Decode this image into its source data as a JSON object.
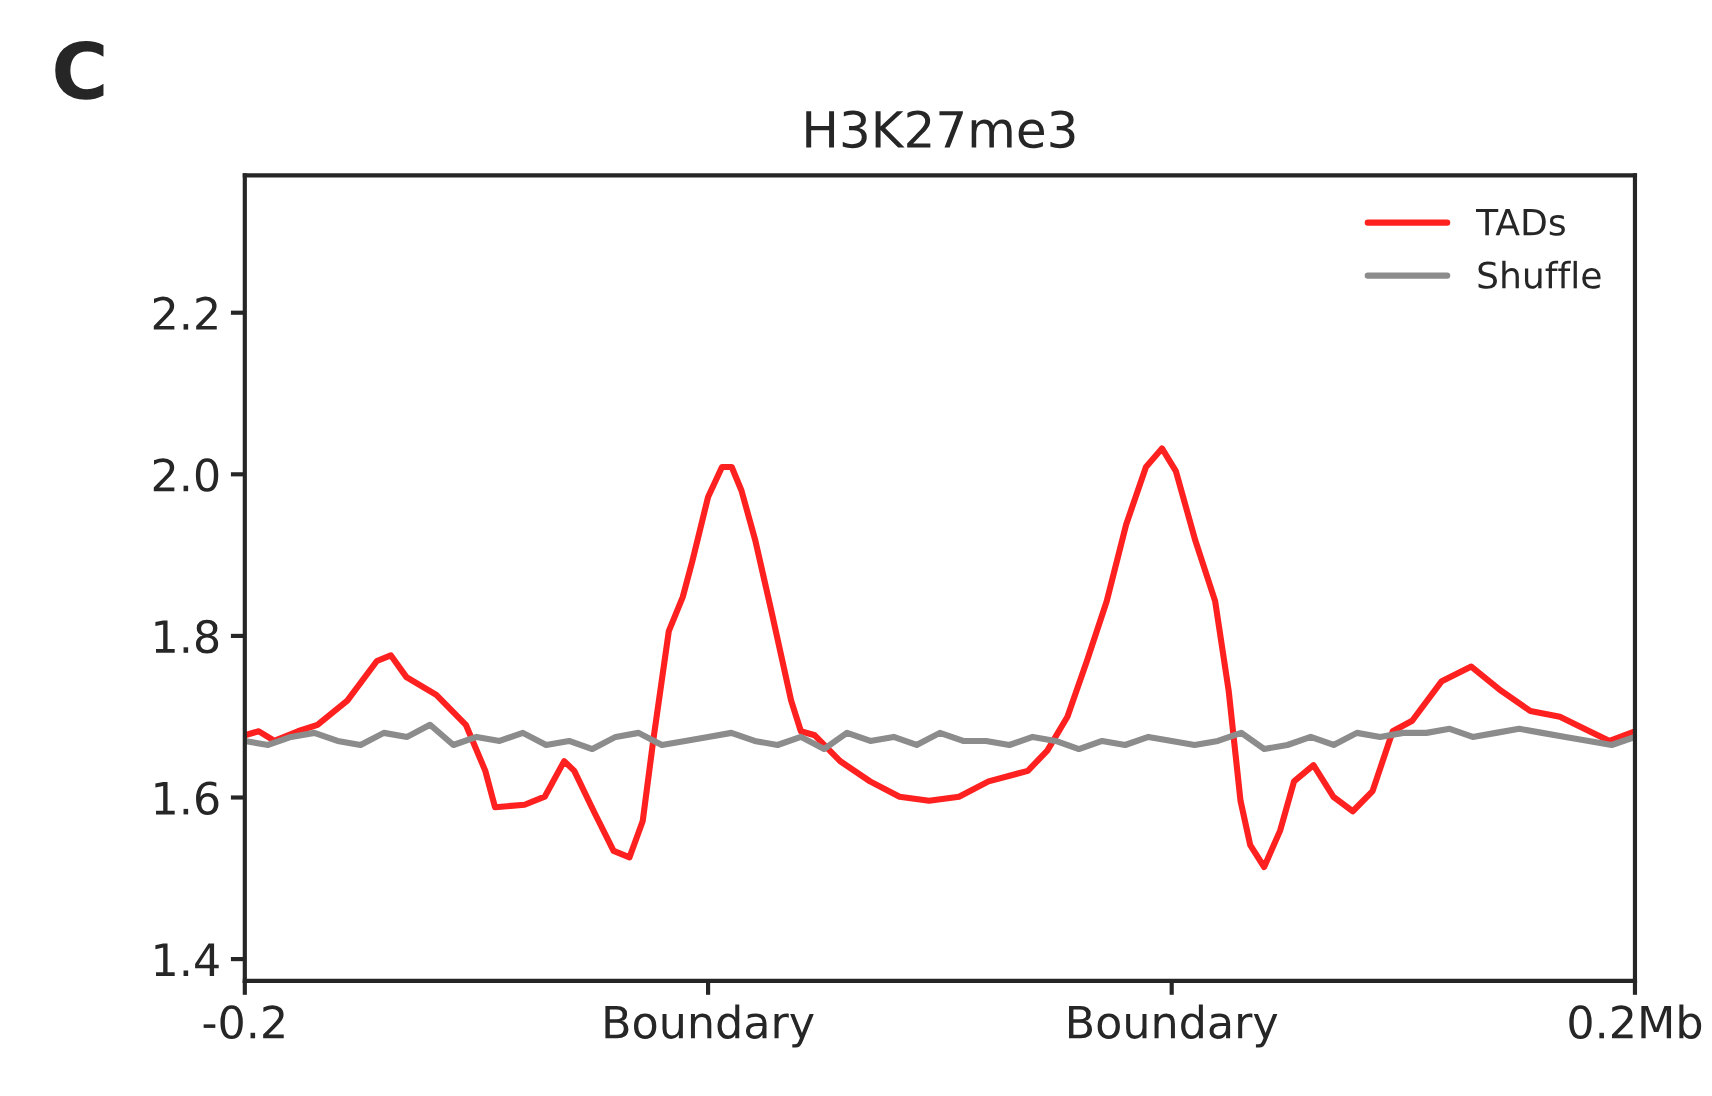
{
  "chart_data": {
    "type": "line",
    "title": "H3K27me3",
    "annotations": [
      "C"
    ],
    "xlim": [
      -0.2,
      0.2
    ],
    "xticks": [
      {
        "value": -0.2,
        "label": "-0.2"
      },
      {
        "value": -0.0667,
        "label": "Boundary"
      },
      {
        "value": 0.0667,
        "label": "Boundary"
      },
      {
        "value": 0.2,
        "label": "0.2Mb"
      }
    ],
    "ylim": [
      1.373,
      2.37
    ],
    "yticks": [
      {
        "value": 1.4,
        "label": "1.4"
      },
      {
        "value": 1.6,
        "label": "1.6"
      },
      {
        "value": 1.8,
        "label": "1.8"
      },
      {
        "value": 2.0,
        "label": "2.0"
      },
      {
        "value": 2.2,
        "label": "2.2"
      }
    ],
    "grid": false,
    "legend": "top right",
    "marker": "none",
    "line_style": "solid",
    "series": [
      {
        "name": "TADs",
        "color": "#ff2020",
        "x": [
          -0.2,
          -0.196,
          -0.1915,
          -0.1847,
          -0.1791,
          -0.1705,
          -0.162,
          -0.158,
          -0.1535,
          -0.1449,
          -0.1364,
          -0.1308,
          -0.128,
          -0.1195,
          -0.1137,
          -0.1081,
          -0.1052,
          -0.0996,
          -0.0939,
          -0.0893,
          -0.0855,
          -0.0825,
          -0.078,
          -0.074,
          -0.0712,
          -0.0667,
          -0.0627,
          -0.0599,
          -0.0571,
          -0.0531,
          -0.0485,
          -0.0428,
          -0.04,
          -0.036,
          -0.0287,
          -0.0201,
          -0.0116,
          -0.0031,
          0.0055,
          0.014,
          0.0253,
          0.0309,
          0.0367,
          0.0423,
          0.048,
          0.0536,
          0.0593,
          0.0639,
          0.0679,
          0.0735,
          0.0792,
          0.0831,
          0.0865,
          0.0893,
          0.0933,
          0.0979,
          0.1019,
          0.1075,
          0.1132,
          0.1188,
          0.1245,
          0.1303,
          0.1359,
          0.1444,
          0.1529,
          0.1615,
          0.1699,
          0.1784,
          0.1869,
          0.1927,
          0.2
        ],
        "values": [
          1.677,
          1.682,
          1.67,
          1.682,
          1.69,
          1.72,
          1.769,
          1.776,
          1.749,
          1.727,
          1.69,
          1.633,
          1.588,
          1.591,
          1.601,
          1.645,
          1.633,
          1.583,
          1.534,
          1.526,
          1.571,
          1.67,
          1.806,
          1.848,
          1.893,
          1.972,
          2.009,
          2.009,
          1.98,
          1.918,
          1.831,
          1.72,
          1.682,
          1.677,
          1.645,
          1.62,
          1.601,
          1.596,
          1.601,
          1.62,
          1.633,
          1.658,
          1.7,
          1.769,
          1.843,
          1.938,
          2.009,
          2.032,
          2.004,
          1.918,
          1.843,
          1.732,
          1.596,
          1.541,
          1.514,
          1.559,
          1.62,
          1.64,
          1.601,
          1.583,
          1.608,
          1.682,
          1.695,
          1.744,
          1.762,
          1.732,
          1.707,
          1.7,
          1.682,
          1.67,
          1.682
        ]
      },
      {
        "name": "Shuffle",
        "color": "#8c8c8c",
        "x": [
          -0.2,
          -0.1933,
          -0.1867,
          -0.18,
          -0.1733,
          -0.1667,
          -0.16,
          -0.1533,
          -0.1467,
          -0.14,
          -0.1333,
          -0.1267,
          -0.12,
          -0.1133,
          -0.1067,
          -0.1,
          -0.0933,
          -0.0867,
          -0.08,
          -0.0733,
          -0.0667,
          -0.06,
          -0.0533,
          -0.0467,
          -0.04,
          -0.0333,
          -0.0267,
          -0.02,
          -0.0133,
          -0.0067,
          0,
          0.0067,
          0.0133,
          0.02,
          0.0267,
          0.0333,
          0.04,
          0.0467,
          0.0533,
          0.06,
          0.0667,
          0.0733,
          0.08,
          0.0867,
          0.0933,
          0.1,
          0.1067,
          0.1133,
          0.12,
          0.1267,
          0.1333,
          0.14,
          0.1467,
          0.1533,
          0.16,
          0.1667,
          0.1733,
          0.18,
          0.1867,
          0.1933,
          0.2
        ],
        "values": [
          1.67,
          1.665,
          1.675,
          1.68,
          1.67,
          1.665,
          1.68,
          1.675,
          1.69,
          1.665,
          1.675,
          1.67,
          1.68,
          1.665,
          1.67,
          1.66,
          1.675,
          1.68,
          1.665,
          1.67,
          1.675,
          1.68,
          1.67,
          1.665,
          1.675,
          1.66,
          1.68,
          1.67,
          1.675,
          1.665,
          1.68,
          1.67,
          1.67,
          1.665,
          1.675,
          1.67,
          1.66,
          1.67,
          1.665,
          1.675,
          1.67,
          1.665,
          1.67,
          1.68,
          1.66,
          1.665,
          1.675,
          1.665,
          1.68,
          1.675,
          1.68,
          1.68,
          1.685,
          1.675,
          1.68,
          1.685,
          1.68,
          1.675,
          1.67,
          1.665,
          1.675
        ]
      }
    ]
  }
}
